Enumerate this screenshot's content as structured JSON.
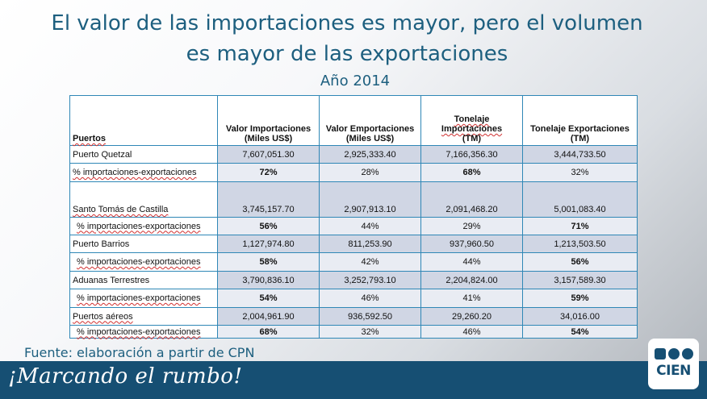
{
  "slide": {
    "title_line1": "El valor de las importaciones es mayor, pero el volumen",
    "title_line2": "es mayor de las exportaciones",
    "subtitle": "Año 2014",
    "source": "Fuente: elaboración a partir de CPN",
    "slogan": "¡Marcando el rumbo!",
    "logo_text": "CIEN"
  },
  "table": {
    "headers": {
      "puertos": "Puertos",
      "valor_imp_1": "Valor Importaciones",
      "valor_imp_2": "(Miles US$)",
      "valor_exp_1": "Valor Emportaciones",
      "valor_exp_2": "(Miles US$)",
      "ton_imp_1": "Tonelaje",
      "ton_imp_2": "Importaciones",
      "ton_imp_3": "(TM)",
      "ton_exp_1": "Tonelaje Exportaciones",
      "ton_exp_2": "(TM)"
    },
    "rows": [
      {
        "name": "Puerto Quetzal",
        "values": [
          "7,607,051.30",
          "2,925,333.40",
          "7,166,356.30",
          "3,444,733.50"
        ],
        "pct_label": "% importaciones-exportaciones",
        "pct": [
          "72%",
          "28%",
          "68%",
          "32%"
        ]
      },
      {
        "name": "Santo Tomás de Castilla",
        "values": [
          "3,745,157.70",
          "2,907,913.10",
          "2,091,468.20",
          "5,001,083.40"
        ],
        "pct_label": "% importaciones-exportaciones",
        "pct": [
          "56%",
          "44%",
          "29%",
          "71%"
        ]
      },
      {
        "name": "Puerto Barrios",
        "values": [
          "1,127,974.80",
          "811,253.90",
          "937,960.50",
          "1,213,503.50"
        ],
        "pct_label": "% importaciones-exportaciones",
        "pct": [
          "58%",
          "42%",
          "44%",
          "56%"
        ]
      },
      {
        "name": "Aduanas Terrestres",
        "values": [
          "3,790,836.10",
          "3,252,793.10",
          "2,204,824.00",
          "3,157,589.30"
        ],
        "pct_label": "% importaciones-exportaciones",
        "pct": [
          "54%",
          "46%",
          "41%",
          "59%"
        ]
      },
      {
        "name": "Puertos aéreos",
        "values": [
          "2,004,961.90",
          "936,592.50",
          "29,260.20",
          "34,016.00"
        ],
        "pct_label": "% importaciones-exportaciones",
        "pct": [
          "68%",
          "32%",
          "46%",
          "54%"
        ]
      }
    ]
  },
  "colors": {
    "title": "#1d5f7f",
    "footer": "#164f73",
    "table_border": "#2f87b6",
    "value_row": "#d0d6e4",
    "pct_row": "#e9ecf3"
  }
}
